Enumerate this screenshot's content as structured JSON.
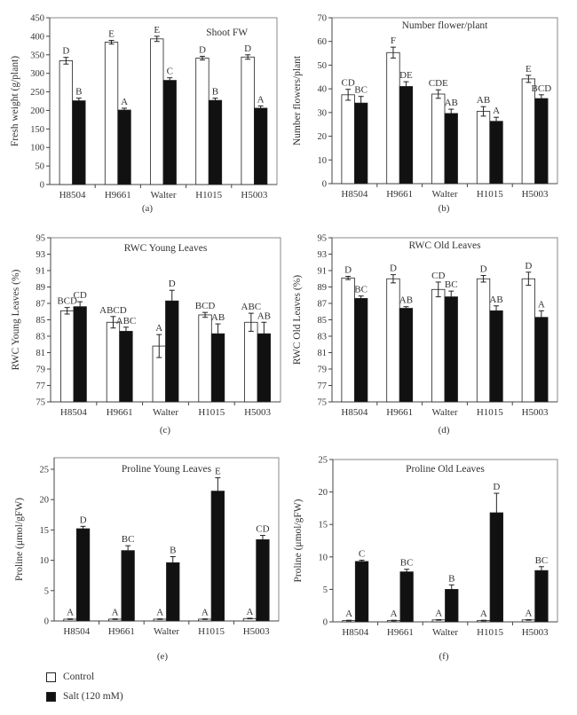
{
  "legend": {
    "items": [
      {
        "label": "Control",
        "color": "#ffffff"
      },
      {
        "label": "Salt (120 mM)",
        "color": "#111111"
      }
    ]
  },
  "chart_data": [
    {
      "type": "bar",
      "panel": "(a)",
      "title": "Shoot FW",
      "ylabel": "Fresh weight (g/plant)",
      "xlabel": "",
      "categories": [
        "H8504",
        "H9661",
        "Walter",
        "H1015",
        "H5003"
      ],
      "ylim": [
        0,
        450
      ],
      "yticks": [
        0,
        50,
        100,
        150,
        200,
        250,
        300,
        350,
        400,
        450
      ],
      "title_position": "top-right",
      "series": [
        {
          "name": "Control",
          "values": [
            334,
            384,
            393,
            341,
            344
          ],
          "errors": [
            9,
            5,
            7,
            5,
            6
          ],
          "letters": [
            "D",
            "E",
            "E",
            "D",
            "D"
          ]
        },
        {
          "name": "Salt (120 mM)",
          "values": [
            226,
            201,
            281,
            227,
            206
          ],
          "errors": [
            7,
            5,
            7,
            6,
            6
          ],
          "letters": [
            "B",
            "A",
            "C",
            "B",
            "A"
          ]
        }
      ]
    },
    {
      "type": "bar",
      "panel": "(b)",
      "title": "Number flower/plant",
      "ylabel": "Number flowers/plant",
      "xlabel": "",
      "categories": [
        "H8504",
        "H9661",
        "Walter",
        "H1015",
        "H5003"
      ],
      "ylim": [
        0,
        70
      ],
      "yticks": [
        0,
        10,
        20,
        30,
        40,
        50,
        60,
        70
      ],
      "title_position": "top-center",
      "series": [
        {
          "name": "Control",
          "values": [
            37.5,
            55.3,
            37.8,
            30.5,
            44.2
          ],
          "errors": [
            2.3,
            2.3,
            1.8,
            2.0,
            1.5
          ],
          "letters": [
            "CD",
            "F",
            "CDE",
            "AB",
            "E"
          ]
        },
        {
          "name": "Salt (120 mM)",
          "values": [
            34,
            41,
            29.6,
            26.3,
            35.9
          ],
          "errors": [
            2.8,
            2.0,
            1.8,
            1.7,
            1.6
          ],
          "letters": [
            "BC",
            "DE",
            "AB",
            "A",
            "BCD"
          ]
        }
      ]
    },
    {
      "type": "bar",
      "panel": "(c)",
      "title": "RWC Young Leaves",
      "ylabel": "RWC Young Leaves (%)",
      "xlabel": "",
      "categories": [
        "H8504",
        "H9661",
        "Walter",
        "H1015",
        "H5003"
      ],
      "ylim": [
        75,
        95
      ],
      "yticks": [
        75,
        77,
        79,
        81,
        83,
        85,
        87,
        89,
        91,
        93,
        95
      ],
      "title_position": "top-center",
      "series": [
        {
          "name": "Control",
          "values": [
            86.1,
            84.7,
            81.8,
            85.6,
            84.7
          ],
          "errors": [
            0.4,
            0.7,
            1.4,
            0.3,
            1.1
          ],
          "letters": [
            "BCD",
            "ABCD",
            "A",
            "BCD",
            "ABC"
          ]
        },
        {
          "name": "Salt (120 mM)",
          "values": [
            86.6,
            83.6,
            87.3,
            83.3,
            83.3
          ],
          "errors": [
            0.6,
            0.5,
            1.3,
            1.2,
            1.4
          ],
          "letters": [
            "CD",
            "ABC",
            "D",
            "AB",
            "AB"
          ]
        }
      ]
    },
    {
      "type": "bar",
      "panel": "(d)",
      "title": "RWC Old Leaves",
      "ylabel": "RWC Old Leaves (%)",
      "xlabel": "",
      "categories": [
        "H8504",
        "H9661",
        "Walter",
        "H1015",
        "H5003"
      ],
      "ylim": [
        75,
        95
      ],
      "yticks": [
        75,
        77,
        79,
        81,
        83,
        85,
        87,
        89,
        91,
        93,
        95
      ],
      "title_position": "top-center",
      "series": [
        {
          "name": "Control",
          "values": [
            90.1,
            90.0,
            88.7,
            90.0,
            90.0
          ],
          "errors": [
            0.2,
            0.5,
            0.9,
            0.4,
            0.8
          ],
          "letters": [
            "D",
            "D",
            "CD",
            "D",
            "D"
          ]
        },
        {
          "name": "Salt (120 mM)",
          "values": [
            87.6,
            86.4,
            87.8,
            86.1,
            85.3
          ],
          "errors": [
            0.3,
            0.2,
            0.7,
            0.6,
            0.8
          ],
          "letters": [
            "BC",
            "AB",
            "BC",
            "AB",
            "A"
          ]
        }
      ]
    },
    {
      "type": "bar",
      "panel": "(e)",
      "title": "Proline Young Leaves",
      "ylabel": "Proline (μmol/gFW)",
      "xlabel": "",
      "categories": [
        "H8504",
        "H9661",
        "Walter",
        "H1015",
        "H5003"
      ],
      "ylim": [
        0,
        27
      ],
      "yticks": [
        0,
        5,
        10,
        15,
        20,
        25
      ],
      "title_position": "top-center",
      "series": [
        {
          "name": "Control",
          "values": [
            0.3,
            0.3,
            0.3,
            0.3,
            0.4
          ],
          "errors": [
            0.05,
            0.05,
            0.05,
            0.05,
            0.05
          ],
          "letters": [
            "A",
            "A",
            "A",
            "A",
            "A"
          ]
        },
        {
          "name": "Salt (120 mM)",
          "values": [
            15.2,
            11.6,
            9.6,
            21.4,
            13.4
          ],
          "errors": [
            0.4,
            0.8,
            1.0,
            2.2,
            0.7
          ],
          "letters": [
            "D",
            "BC",
            "B",
            "E",
            "CD"
          ]
        }
      ]
    },
    {
      "type": "bar",
      "panel": "(f)",
      "title": "Proline Old Leaves",
      "ylabel": "Proline (μmol/gFW)",
      "xlabel": "",
      "categories": [
        "H8504",
        "H9661",
        "Walter",
        "H1015",
        "H5003"
      ],
      "ylim": [
        0,
        25
      ],
      "yticks": [
        0,
        5,
        10,
        15,
        20,
        25
      ],
      "title_position": "top-center",
      "series": [
        {
          "name": "Control",
          "values": [
            0.2,
            0.2,
            0.3,
            0.2,
            0.3
          ],
          "errors": [
            0.05,
            0.05,
            0.05,
            0.05,
            0.05
          ],
          "letters": [
            "A",
            "A",
            "A",
            "A",
            "A"
          ]
        },
        {
          "name": "Salt (120 mM)",
          "values": [
            9.3,
            7.7,
            5.0,
            16.8,
            7.9
          ],
          "errors": [
            0.2,
            0.4,
            0.7,
            3.0,
            0.6
          ],
          "letters": [
            "C",
            "BC",
            "B",
            "D",
            "BC"
          ]
        }
      ]
    }
  ]
}
